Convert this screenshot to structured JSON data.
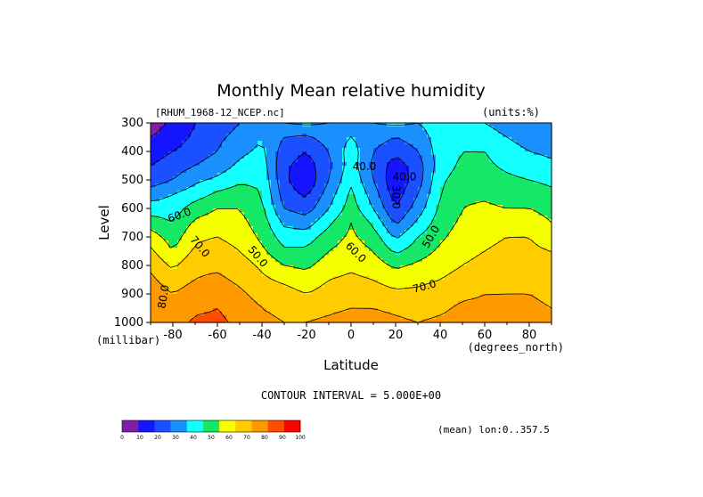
{
  "chart_data": {
    "type": "heatmap",
    "title": "Monthly Mean relative humidity",
    "dataset_label": "[RHUM_1968-12_NCEP.nc]",
    "units_label": "(units:%)",
    "xlabel": "Latitude",
    "x_units": "(degrees_north)",
    "ylabel": "Level",
    "y_units": "(millibar)",
    "xlim": [
      -90,
      90
    ],
    "ylim": [
      1000,
      300
    ],
    "x_ticks": [
      "-80",
      "-60",
      "-40",
      "-20",
      "0",
      "20",
      "40",
      "60",
      "80"
    ],
    "y_ticks": [
      "300",
      "400",
      "500",
      "600",
      "700",
      "800",
      "900",
      "1000"
    ],
    "contour_interval_label": "CONTOUR INTERVAL = 5.000E+00",
    "mean_label": "(mean) lon:0..357.5",
    "contour_labels": [
      "40.0",
      "40.0",
      "30.0",
      "60.0",
      "70.0",
      "50.0",
      "60.0",
      "50.0",
      "70.0",
      "80.0"
    ],
    "colorbar": {
      "ticks": [
        "0",
        "10",
        "20",
        "30",
        "40",
        "50",
        "60",
        "70",
        "80",
        "90",
        "100"
      ],
      "colors": [
        "#7f1fa8",
        "#1414ff",
        "#1a50ff",
        "#1a90ff",
        "#14ffff",
        "#14e866",
        "#f5ff00",
        "#ffcc00",
        "#ff9900",
        "#ff4d00",
        "#ff0000"
      ]
    },
    "levels_mb": [
      300,
      350,
      400,
      450,
      500,
      550,
      600,
      650,
      700,
      750,
      800,
      850,
      900,
      950,
      1000
    ],
    "latitudes": [
      -90,
      -80,
      -70,
      -60,
      -50,
      -40,
      -30,
      -20,
      -10,
      0,
      10,
      20,
      30,
      40,
      50,
      60,
      70,
      80,
      90
    ],
    "values": [
      [
        5,
        12,
        20,
        25,
        30,
        35,
        40,
        42,
        40,
        38,
        40,
        42,
        40,
        45,
        45,
        40,
        35,
        30,
        30
      ],
      [
        10,
        15,
        22,
        28,
        33,
        40,
        30,
        28,
        35,
        40,
        35,
        30,
        35,
        45,
        48,
        45,
        40,
        35,
        35
      ],
      [
        15,
        20,
        25,
        30,
        38,
        42,
        25,
        20,
        30,
        45,
        30,
        22,
        30,
        45,
        50,
        50,
        45,
        40,
        38
      ],
      [
        20,
        25,
        30,
        35,
        42,
        45,
        22,
        15,
        28,
        45,
        28,
        15,
        25,
        45,
        52,
        52,
        48,
        45,
        42
      ],
      [
        25,
        30,
        38,
        42,
        48,
        48,
        22,
        12,
        30,
        48,
        30,
        12,
        25,
        48,
        55,
        55,
        52,
        50,
        48
      ],
      [
        35,
        40,
        45,
        52,
        55,
        50,
        25,
        18,
        35,
        52,
        35,
        15,
        30,
        50,
        58,
        58,
        55,
        55,
        52
      ],
      [
        45,
        45,
        55,
        60,
        60,
        52,
        30,
        25,
        40,
        55,
        40,
        20,
        35,
        52,
        60,
        62,
        60,
        60,
        55
      ],
      [
        55,
        50,
        62,
        65,
        63,
        55,
        38,
        35,
        48,
        60,
        48,
        28,
        42,
        55,
        62,
        65,
        65,
        68,
        60
      ],
      [
        65,
        55,
        68,
        70,
        66,
        58,
        45,
        45,
        55,
        62,
        55,
        38,
        50,
        58,
        65,
        68,
        70,
        70,
        65
      ],
      [
        72,
        60,
        72,
        75,
        70,
        62,
        52,
        52,
        60,
        65,
        60,
        48,
        55,
        62,
        68,
        70,
        72,
        72,
        70
      ],
      [
        78,
        68,
        78,
        78,
        75,
        68,
        60,
        58,
        65,
        68,
        65,
        58,
        62,
        66,
        70,
        72,
        75,
        75,
        72
      ],
      [
        82,
        75,
        80,
        82,
        78,
        72,
        68,
        64,
        70,
        72,
        70,
        66,
        68,
        70,
        74,
        76,
        78,
        78,
        75
      ],
      [
        85,
        80,
        85,
        86,
        82,
        76,
        74,
        70,
        74,
        76,
        74,
        72,
        72,
        74,
        78,
        80,
        80,
        80,
        78
      ],
      [
        88,
        82,
        88,
        90,
        86,
        80,
        78,
        76,
        78,
        80,
        80,
        78,
        76,
        78,
        82,
        82,
        82,
        82,
        80
      ],
      [
        90,
        85,
        92,
        92,
        88,
        82,
        80,
        80,
        82,
        84,
        84,
        82,
        80,
        82,
        84,
        84,
        84,
        85,
        82
      ]
    ]
  }
}
